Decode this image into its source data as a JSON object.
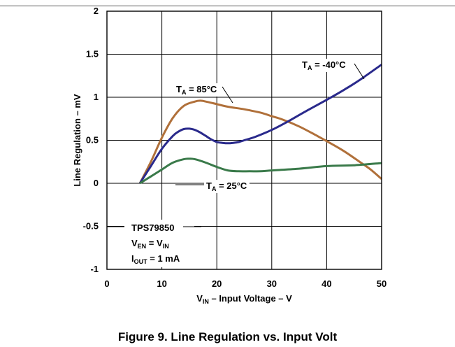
{
  "caption": "Figure 9. Line Regulation vs. Input Volt",
  "chart_data": {
    "type": "line",
    "xlabel": {
      "main": "V",
      "sub": "IN",
      "rest": " – Input Voltage – V"
    },
    "ylabel": "Line Regulation – mV",
    "xlim": [
      0,
      50
    ],
    "ylim": [
      -1,
      2
    ],
    "xticks": [
      0,
      10,
      20,
      30,
      40,
      50
    ],
    "yticks": [
      2,
      1.5,
      1,
      0.5,
      0,
      -0.5,
      -1
    ],
    "ytick_labels": [
      "2",
      "1.5",
      "1",
      "0.5",
      "0",
      "-0.5",
      "-1"
    ],
    "grid": true,
    "series": [
      {
        "name": {
          "main": "T",
          "sub": "A",
          "rest": " = 85°C"
        },
        "color": "#b0703a",
        "x": [
          6,
          8,
          10,
          12,
          14,
          16,
          17,
          18,
          20,
          22,
          25,
          28,
          30,
          32,
          35,
          38,
          40,
          43,
          46,
          48,
          50
        ],
        "y": [
          0,
          0.25,
          0.53,
          0.76,
          0.9,
          0.95,
          0.96,
          0.95,
          0.92,
          0.89,
          0.86,
          0.82,
          0.78,
          0.74,
          0.66,
          0.56,
          0.49,
          0.38,
          0.25,
          0.16,
          0.05
        ]
      },
      {
        "name": {
          "main": "T",
          "sub": "A",
          "rest": " = -40°C"
        },
        "color": "#2a2a8c",
        "x": [
          6,
          8,
          10,
          12,
          13,
          14,
          15,
          16,
          17,
          18,
          19,
          20,
          21,
          22,
          23,
          24,
          25,
          27,
          30,
          33,
          36,
          40,
          43,
          46,
          50
        ],
        "y": [
          0,
          0.2,
          0.4,
          0.55,
          0.6,
          0.63,
          0.635,
          0.62,
          0.59,
          0.55,
          0.51,
          0.48,
          0.47,
          0.465,
          0.47,
          0.48,
          0.5,
          0.54,
          0.62,
          0.72,
          0.83,
          0.97,
          1.08,
          1.2,
          1.38
        ]
      },
      {
        "name": {
          "main": "T",
          "sub": "A",
          "rest": " = 25°C"
        },
        "color": "#3a7a4a",
        "x": [
          6,
          8,
          10,
          12,
          14,
          15,
          16,
          18,
          20,
          22,
          24,
          26,
          28,
          30,
          35,
          40,
          45,
          50
        ],
        "y": [
          0,
          0.08,
          0.16,
          0.24,
          0.28,
          0.285,
          0.28,
          0.24,
          0.19,
          0.15,
          0.14,
          0.14,
          0.14,
          0.15,
          0.17,
          0.2,
          0.21,
          0.235
        ]
      }
    ],
    "annotation": {
      "device": "TPS79850",
      "conditions": [
        {
          "main": "V",
          "sub": "EN",
          "rest": " = V",
          "sub2": "IN"
        },
        {
          "main": "I",
          "sub": "OUT",
          "rest": " = 1 mA",
          "sub2": ""
        }
      ]
    }
  }
}
